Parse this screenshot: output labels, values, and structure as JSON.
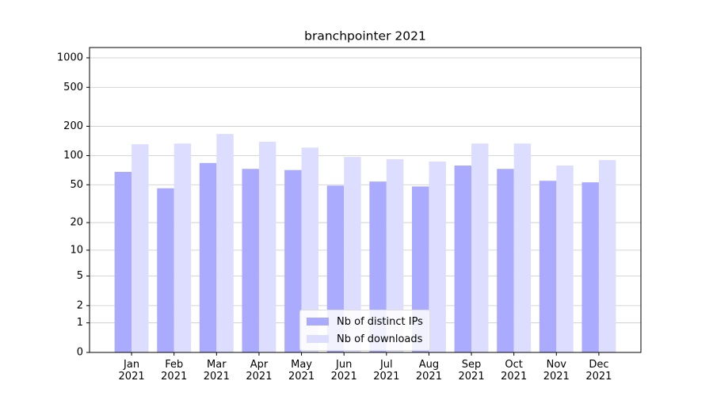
{
  "chart_data": {
    "type": "bar",
    "title": "branchpointer 2021",
    "categories": [
      "Jan\n2021",
      "Feb\n2021",
      "Mar\n2021",
      "Apr\n2021",
      "May\n2021",
      "Jun\n2021",
      "Jul\n2021",
      "Aug\n2021",
      "Sep\n2021",
      "Oct\n2021",
      "Nov\n2021",
      "Dec\n2021"
    ],
    "series": [
      {
        "name": "Nb of distinct IPs",
        "color": "#aaaaff",
        "values": [
          68,
          46,
          84,
          73,
          71,
          49,
          54,
          48,
          79,
          73,
          55,
          53
        ]
      },
      {
        "name": "Nb of downloads",
        "color": "#ddddff",
        "values": [
          131,
          133,
          167,
          139,
          121,
          97,
          92,
          87,
          133,
          133,
          79,
          90
        ]
      }
    ],
    "yscale": "log1p",
    "ylim": [
      0,
      1273
    ],
    "yticks": [
      0,
      1,
      2,
      5,
      10,
      20,
      50,
      100,
      200,
      500,
      1000
    ],
    "grid": true,
    "legend": "lower center"
  }
}
